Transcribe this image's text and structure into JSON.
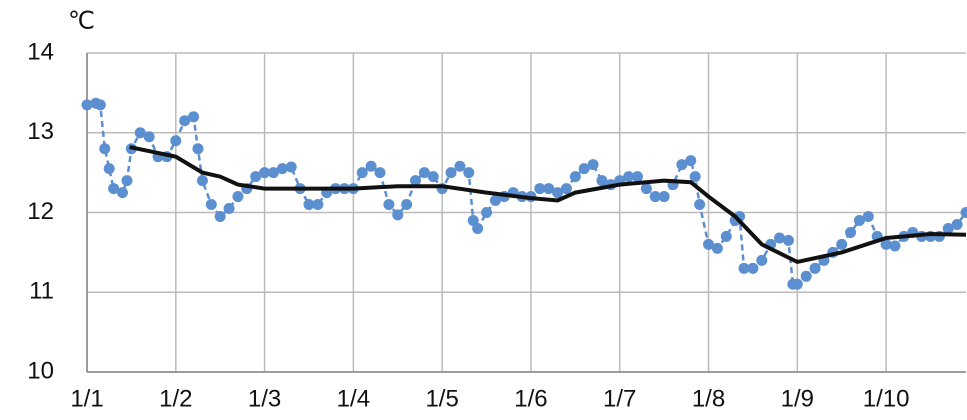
{
  "chart_data": {
    "type": "line",
    "y_unit": "℃",
    "xlim": [
      0,
      9.9
    ],
    "xticks": [
      {
        "value": 0,
        "label": "1/1"
      },
      {
        "value": 1,
        "label": "1/2"
      },
      {
        "value": 2,
        "label": "1/3"
      },
      {
        "value": 3,
        "label": "1/4"
      },
      {
        "value": 4,
        "label": "1/5"
      },
      {
        "value": 5,
        "label": "1/6"
      },
      {
        "value": 6,
        "label": "1/7"
      },
      {
        "value": 7,
        "label": "1/8"
      },
      {
        "value": 8,
        "label": "1/9"
      },
      {
        "value": 9,
        "label": "1/10"
      }
    ],
    "ylim": [
      10,
      14
    ],
    "yticks": [
      10,
      11,
      12,
      13,
      14
    ],
    "grid": true,
    "series": [
      {
        "color": "#5b8fd0",
        "style": "dashed-dots",
        "x": [
          0,
          0.1,
          0.15,
          0.2,
          0.25,
          0.3,
          0.4,
          0.45,
          0.5,
          0.6,
          0.7,
          0.8,
          0.9,
          1.0,
          1.1,
          1.2,
          1.25,
          1.3,
          1.4,
          1.5,
          1.6,
          1.7,
          1.8,
          1.9,
          2.0,
          2.1,
          2.2,
          2.3,
          2.4,
          2.5,
          2.6,
          2.7,
          2.8,
          2.9,
          3.0,
          3.1,
          3.2,
          3.3,
          3.4,
          3.5,
          3.6,
          3.7,
          3.8,
          3.9,
          4.0,
          4.1,
          4.2,
          4.3,
          4.35,
          4.4,
          4.5,
          4.6,
          4.7,
          4.8,
          4.9,
          5.0,
          5.1,
          5.2,
          5.3,
          5.4,
          5.5,
          5.6,
          5.7,
          5.8,
          5.9,
          6.0,
          6.1,
          6.2,
          6.3,
          6.4,
          6.5,
          6.6,
          6.7,
          6.8,
          6.85,
          6.9,
          7.0,
          7.1,
          7.2,
          7.3,
          7.35,
          7.4,
          7.5,
          7.6,
          7.7,
          7.8,
          7.9,
          7.95,
          8.0,
          8.1,
          8.2,
          8.3,
          8.4,
          8.5,
          8.6,
          8.7,
          8.8,
          8.9,
          9.0,
          9.1,
          9.2,
          9.3,
          9.4,
          9.5,
          9.6,
          9.7,
          9.8,
          9.9
        ],
        "values": [
          13.35,
          13.37,
          13.35,
          12.8,
          12.55,
          12.3,
          12.25,
          12.4,
          12.8,
          13.0,
          12.95,
          12.7,
          12.7,
          12.9,
          13.15,
          13.2,
          12.8,
          12.4,
          12.1,
          11.95,
          12.05,
          12.2,
          12.3,
          12.45,
          12.5,
          12.5,
          12.55,
          12.57,
          12.3,
          12.1,
          12.1,
          12.25,
          12.3,
          12.3,
          12.3,
          12.5,
          12.58,
          12.5,
          12.1,
          11.97,
          12.1,
          12.4,
          12.5,
          12.45,
          12.3,
          12.5,
          12.58,
          12.5,
          11.9,
          11.8,
          12.0,
          12.15,
          12.2,
          12.25,
          12.2,
          12.2,
          12.3,
          12.3,
          12.25,
          12.3,
          12.45,
          12.55,
          12.6,
          12.4,
          12.35,
          12.4,
          12.45,
          12.45,
          12.3,
          12.2,
          12.2,
          12.35,
          12.6,
          12.65,
          12.45,
          12.1,
          11.6,
          11.55,
          11.7,
          11.9,
          11.95,
          11.3,
          11.3,
          11.4,
          11.6,
          11.68,
          11.65,
          11.1,
          11.1,
          11.2,
          11.3,
          11.4,
          11.5,
          11.6,
          11.75,
          11.9,
          11.95,
          11.7,
          11.6,
          11.58,
          11.7,
          11.75,
          11.7,
          11.7,
          11.7,
          11.8,
          11.85,
          12.0
        ]
      },
      {
        "color": "#111111",
        "style": "solid",
        "x": [
          0.48,
          1.0,
          1.3,
          1.5,
          1.7,
          2.0,
          2.5,
          3.0,
          3.5,
          4.0,
          4.5,
          5.0,
          5.3,
          5.5,
          6.0,
          6.5,
          6.8,
          7.0,
          7.3,
          7.6,
          8.0,
          8.5,
          9.0,
          9.5,
          9.9
        ],
        "values": [
          12.82,
          12.7,
          12.5,
          12.45,
          12.35,
          12.3,
          12.3,
          12.3,
          12.33,
          12.33,
          12.25,
          12.18,
          12.15,
          12.25,
          12.35,
          12.4,
          12.38,
          12.2,
          11.95,
          11.6,
          11.38,
          11.5,
          11.68,
          11.73,
          11.72
        ]
      }
    ]
  }
}
